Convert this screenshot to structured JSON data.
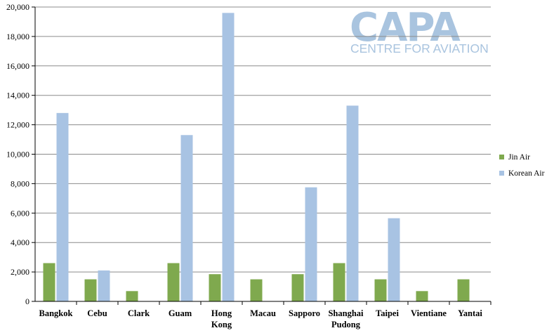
{
  "chart_data": {
    "type": "bar",
    "categories": [
      [
        "Bangkok"
      ],
      [
        "Cebu"
      ],
      [
        "Clark"
      ],
      [
        "Guam"
      ],
      [
        "Hong",
        "Kong"
      ],
      [
        "Macau"
      ],
      [
        "Sapporo"
      ],
      [
        "Shanghai",
        "Pudong"
      ],
      [
        "Taipei"
      ],
      [
        "Vientiane"
      ],
      [
        "Yantai"
      ]
    ],
    "series": [
      {
        "name": "Jin Air",
        "color": "#7fa94e",
        "values": [
          2600,
          1500,
          700,
          2600,
          1850,
          1500,
          1850,
          2600,
          1500,
          700,
          1500
        ]
      },
      {
        "name": "Korean Air",
        "color": "#a8c3e3",
        "values": [
          12800,
          2100,
          0,
          11300,
          19600,
          0,
          7750,
          13300,
          5650,
          0,
          0
        ]
      }
    ],
    "yticks": [
      "0",
      "2,000",
      "4,000",
      "6,000",
      "8,000",
      "10,000",
      "12,000",
      "14,000",
      "16,000",
      "18,000",
      "20,000"
    ],
    "ylim": [
      0,
      20000
    ],
    "grid": true,
    "legend": "right",
    "title": "",
    "xlabel": "",
    "ylabel": ""
  },
  "watermark": {
    "big": "CAPA",
    "small": "CENTRE FOR AVIATION",
    "color": "#a9c4df"
  }
}
